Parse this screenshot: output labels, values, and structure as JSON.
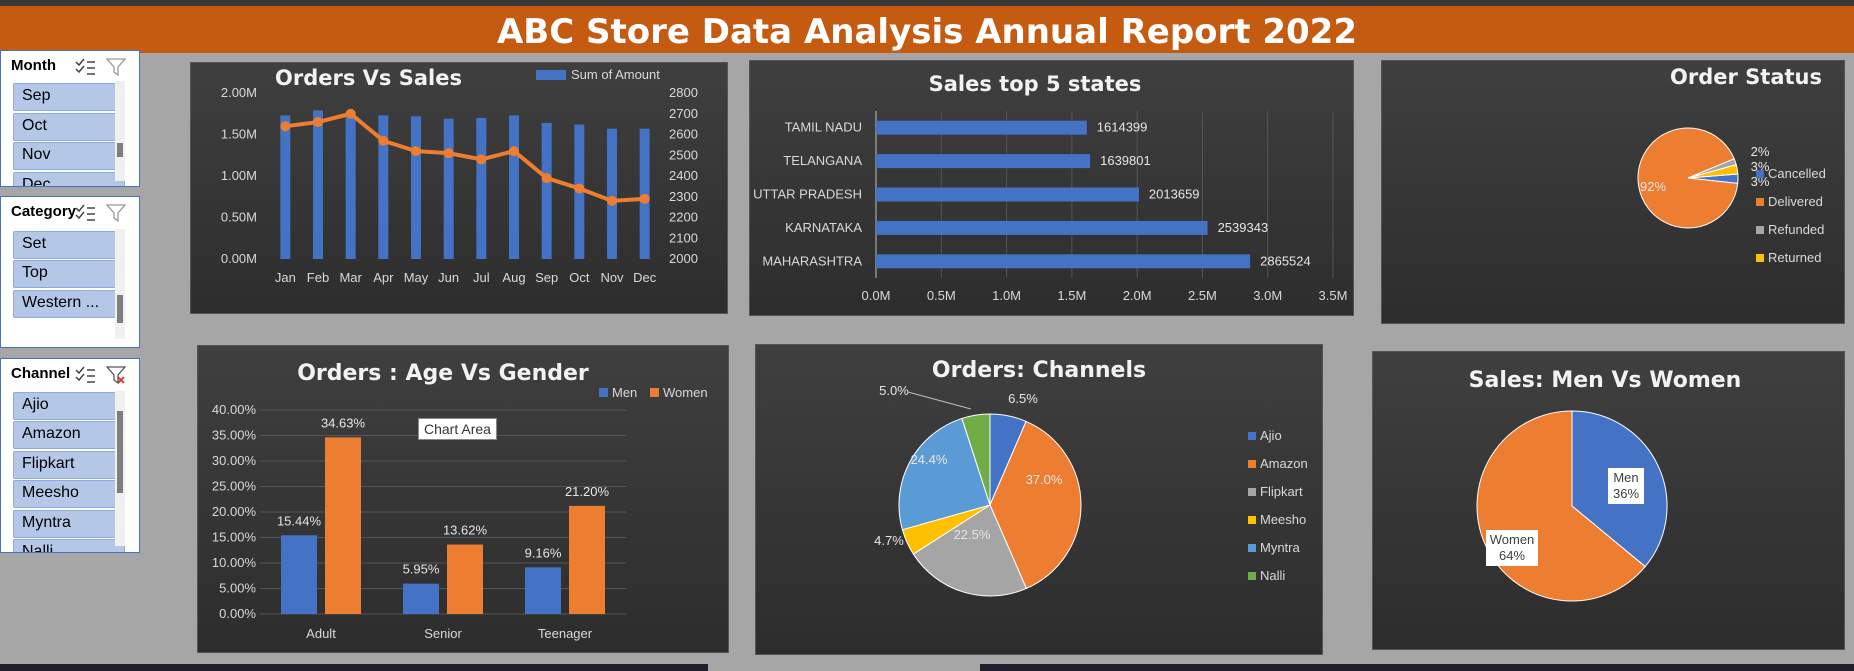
{
  "header": {
    "title": "ABC Store Data Analysis Annual Report 2022"
  },
  "slicers": [
    {
      "title": "Month",
      "items": [
        "Sep",
        "Oct",
        "Nov",
        "Dec"
      ]
    },
    {
      "title": "Category",
      "items": [
        "Set",
        "Top",
        "Western ..."
      ]
    },
    {
      "title": "Channel",
      "items": [
        "Ajio",
        "Amazon",
        "Flipkart",
        "Meesho",
        "Myntra",
        "Nalli"
      ]
    }
  ],
  "tooltip": {
    "text": "Chart Area"
  },
  "colors": {
    "blue": "#4472c4",
    "orange": "#ed7d31",
    "gray": "#a5a5a5",
    "yellow": "#ffc000",
    "lightblue": "#5b9bd5",
    "green": "#70ad47",
    "banner": "#c55a11"
  },
  "chart_data": [
    {
      "id": "orders_vs_sales",
      "type": "bar",
      "title": "Orders Vs Sales",
      "categories": [
        "Jan",
        "Feb",
        "Mar",
        "Apr",
        "May",
        "Jun",
        "Jul",
        "Aug",
        "Sep",
        "Oct",
        "Nov",
        "Dec"
      ],
      "series": [
        {
          "name": "Sum of Amount",
          "type": "bar",
          "axis": "left",
          "values": [
            1730000,
            1790000,
            1770000,
            1730000,
            1720000,
            1690000,
            1700000,
            1730000,
            1640000,
            1620000,
            1570000,
            1570000
          ]
        },
        {
          "name": "",
          "type": "line",
          "axis": "right",
          "values": [
            2640,
            2660,
            2700,
            2570,
            2520,
            2510,
            2480,
            2520,
            2390,
            2340,
            2280,
            2290
          ]
        }
      ],
      "left_ticks": [
        "0.00M",
        "0.50M",
        "1.00M",
        "1.50M",
        "2.00M"
      ],
      "ylim": [
        0,
        2000000
      ],
      "right_ticks": [
        "2000",
        "2100",
        "2200",
        "2300",
        "2400",
        "2500",
        "2600",
        "2700",
        "2800"
      ],
      "y2lim": [
        2000,
        2800
      ],
      "legend": "top-right"
    },
    {
      "id": "sales_top5_states",
      "type": "bar",
      "orientation": "horizontal",
      "title": "Sales top 5 states",
      "categories": [
        "TAMIL NADU",
        "TELANGANA",
        "UTTAR PRADESH",
        "KARNATAKA",
        "MAHARASHTRA"
      ],
      "values": [
        1614399,
        1639801,
        2013659,
        2539343,
        2865524
      ],
      "labels": [
        "1614399",
        "1639801",
        "2013659",
        "2539343",
        "2865524"
      ],
      "x_ticks": [
        "0.0M",
        "0.5M",
        "1.0M",
        "1.5M",
        "2.0M",
        "2.5M",
        "3.0M",
        "3.5M"
      ],
      "xlim": [
        0,
        3500000
      ]
    },
    {
      "id": "order_status",
      "type": "pie",
      "title": "Order Status",
      "categories": [
        "Cancelled",
        "Delivered",
        "Refunded",
        "Returned"
      ],
      "values": [
        3,
        92,
        2,
        3
      ],
      "labels": [
        "3%",
        "92%",
        "2%",
        "3%"
      ],
      "legend": "right"
    },
    {
      "id": "age_vs_gender",
      "type": "bar",
      "title": "Orders : Age Vs Gender",
      "categories": [
        "Adult",
        "Senior",
        "Teenager"
      ],
      "series": [
        {
          "name": "Men",
          "values": [
            15.44,
            5.95,
            9.16
          ],
          "labels": [
            "15.44%",
            "5.95%",
            "9.16%"
          ]
        },
        {
          "name": "Women",
          "values": [
            34.63,
            13.62,
            21.2
          ],
          "labels": [
            "34.63%",
            "13.62%",
            "21.20%"
          ]
        }
      ],
      "y_ticks": [
        "0.00%",
        "5.00%",
        "10.00%",
        "15.00%",
        "20.00%",
        "25.00%",
        "30.00%",
        "35.00%",
        "40.00%"
      ],
      "ylim": [
        0,
        40
      ],
      "legend": "top-right"
    },
    {
      "id": "orders_channels",
      "type": "pie",
      "title": "Orders: Channels",
      "categories": [
        "Ajio",
        "Amazon",
        "Flipkart",
        "Meesho",
        "Myntra",
        "Nalli"
      ],
      "values": [
        6.5,
        37.0,
        22.5,
        4.7,
        24.4,
        5.0
      ],
      "labels": [
        "6.5%",
        "37.0%",
        "22.5%",
        "4.7%",
        "24.4%",
        "5.0%"
      ],
      "legend": "right"
    },
    {
      "id": "sales_men_women",
      "type": "pie",
      "title": "Sales: Men Vs Women",
      "categories": [
        "Men",
        "Women"
      ],
      "values": [
        36,
        64
      ],
      "labels": [
        "36%",
        "64%"
      ]
    }
  ]
}
